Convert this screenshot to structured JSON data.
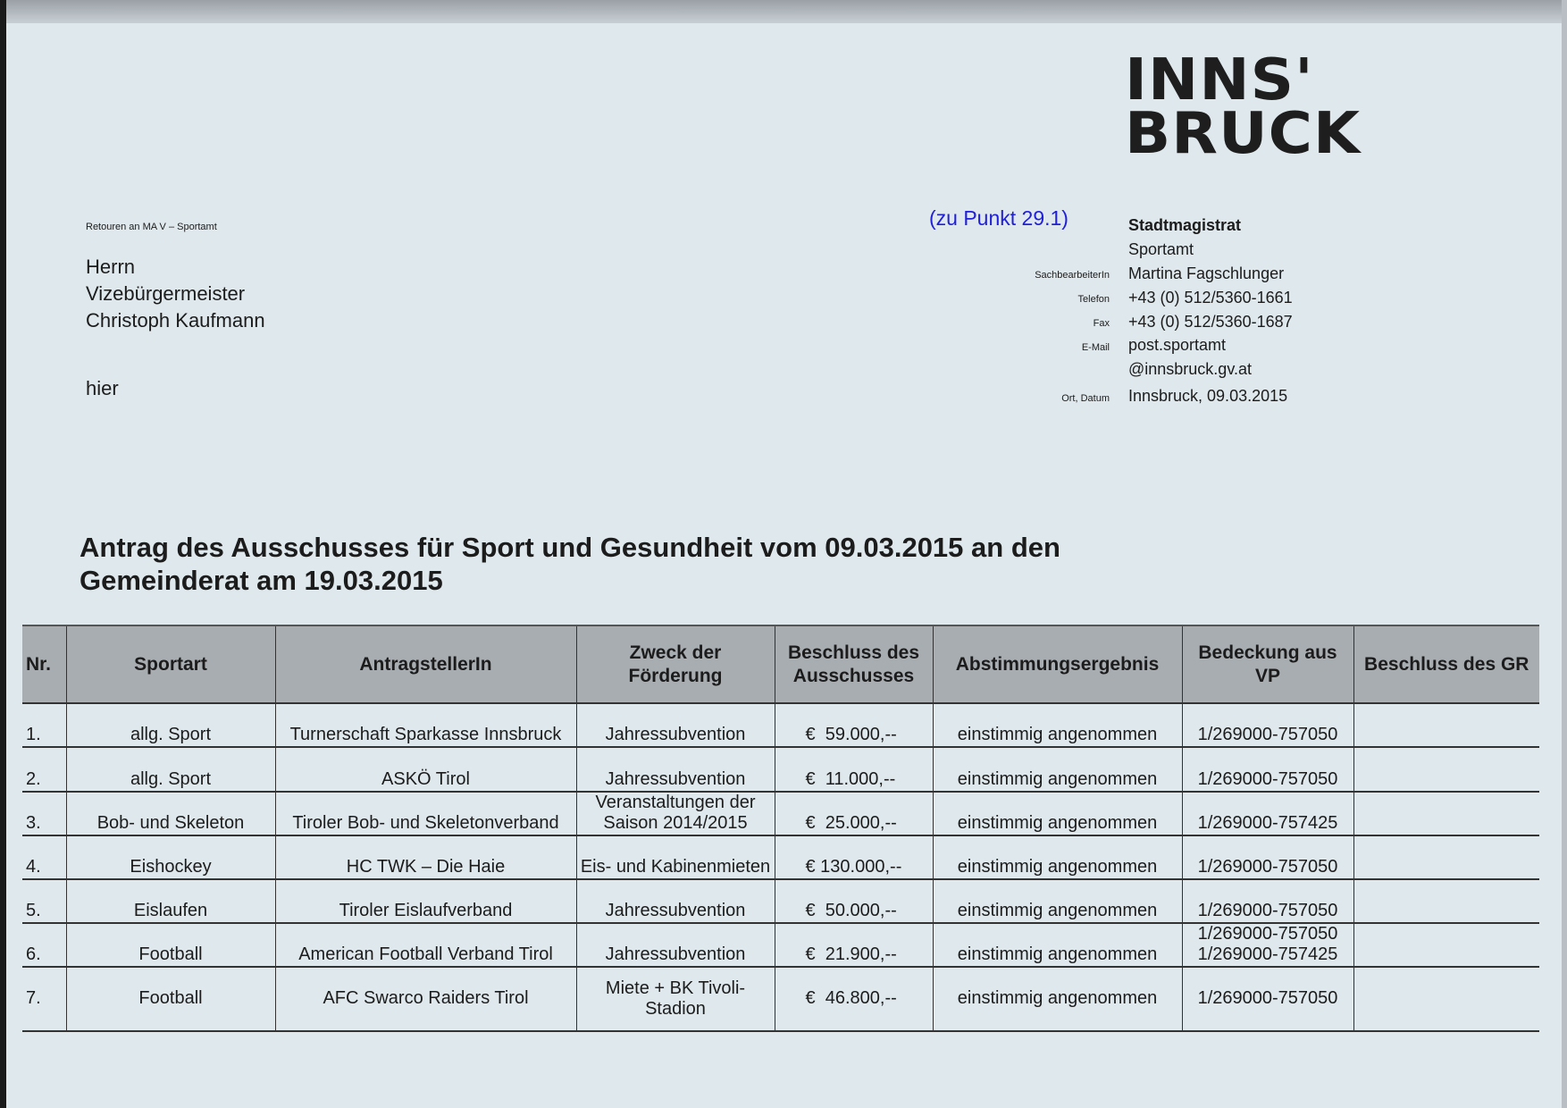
{
  "logo": {
    "line1": "INNS'",
    "line2": "BRUCK"
  },
  "return_note": "Retouren an MA V – Sportamt",
  "recipient": [
    "Herrn",
    "Vizebürgermeister",
    "Christoph Kaufmann"
  ],
  "recipient_place": "hier",
  "agenda_ref": "(zu Punkt 29.1)",
  "sender": {
    "org": "Stadtmagistrat",
    "dept": "Sportamt",
    "clerk_label": "SachbearbeiterIn",
    "clerk": "Martina Fagschlunger",
    "phone_label": "Telefon",
    "phone": "+43 (0) 512/5360-1661",
    "fax_label": "Fax",
    "fax": "+43 (0) 512/5360-1687",
    "email_label": "E-Mail",
    "email_1": "post.sportamt",
    "email_2": "@innsbruck.gv.at",
    "date_label": "Ort, Datum",
    "date": "Innsbruck, 09.03.2015"
  },
  "title_line1": "Antrag des Ausschusses für Sport und Gesundheit vom 09.03.2015 an den",
  "title_line2": "Gemeinderat am 19.03.2015",
  "table": {
    "headers": [
      "Nr.",
      "Sportart",
      "AntragstellerIn",
      "Zweck der Förderung",
      "Beschluss des Ausschusses",
      "Abstimmungsergebnis",
      "Bedeckung aus VP",
      "Beschluss des GR"
    ],
    "rows": [
      [
        "1.",
        "allg. Sport",
        "Turnerschaft Sparkasse Innsbruck",
        "Jahressubvention",
        "€  59.000,--",
        "einstimmig angenommen",
        "1/269000-757050",
        ""
      ],
      [
        "2.",
        "allg. Sport",
        "ASKÖ Tirol",
        "Jahressubvention",
        "€  11.000,--",
        "einstimmig angenommen",
        "1/269000-757050",
        ""
      ],
      [
        "3.",
        "Bob- und Skeleton",
        "Tiroler Bob- und Skeletonverband",
        "Veranstaltungen der Saison 2014/2015",
        "€  25.000,--",
        "einstimmig angenommen",
        "1/269000-757425",
        ""
      ],
      [
        "4.",
        "Eishockey",
        "HC TWK – Die Haie",
        "Eis- und Kabinenmieten",
        "€ 130.000,--",
        "einstimmig angenommen",
        "1/269000-757050",
        ""
      ],
      [
        "5.",
        "Eislaufen",
        "Tiroler Eislaufverband",
        "Jahressubvention",
        "€  50.000,--",
        "einstimmig angenommen",
        "1/269000-757050",
        ""
      ],
      [
        "6.",
        "Football",
        "American Football Verband Tirol",
        "Jahressubvention",
        "€  21.900,--",
        "einstimmig angenommen",
        "1/269000-757050 1/269000-757425",
        ""
      ],
      [
        "7.",
        "Football",
        "AFC Swarco Raiders Tirol",
        "Miete + BK Tivoli-Stadion",
        "€  46.800,--",
        "einstimmig angenommen",
        "1/269000-757050",
        ""
      ]
    ]
  }
}
